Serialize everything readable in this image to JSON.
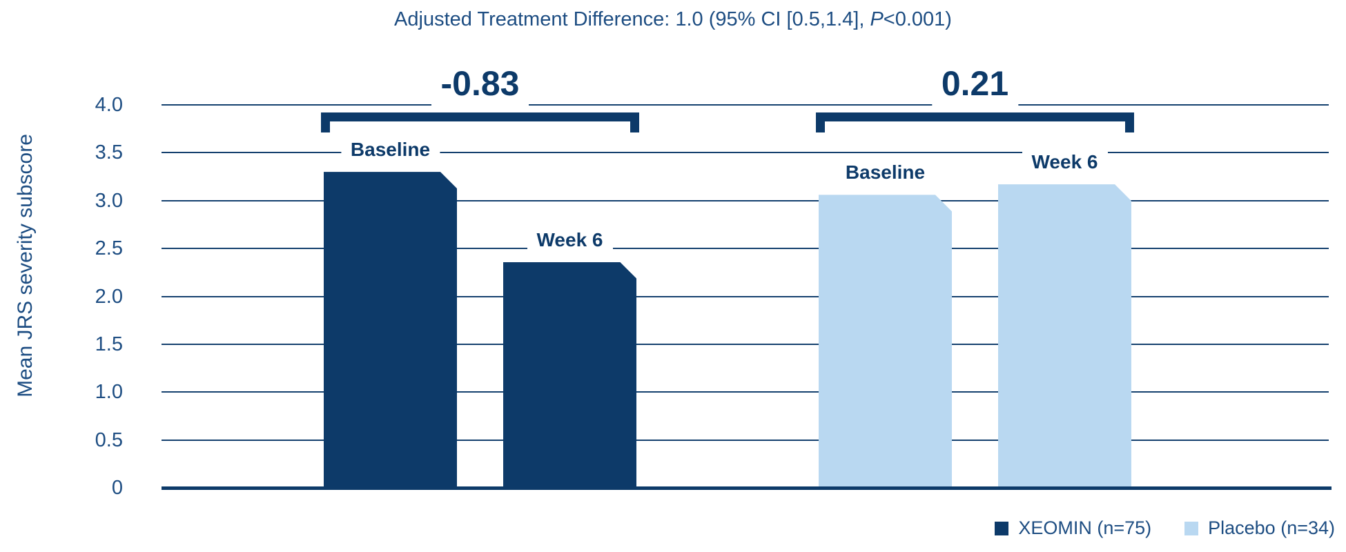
{
  "title": {
    "text_before_p": "Adjusted Treatment Difference: 1.0 (95% CI [0.5,1.4], ",
    "p_italic": "P",
    "text_after_p": "<0.001)"
  },
  "y_axis_title": "Mean JRS severity subscore",
  "chart_data": {
    "type": "bar",
    "title": "Adjusted Treatment Difference: 1.0 (95% CI [0.5,1.4], P<0.001)",
    "ylabel": "Mean JRS severity subscore",
    "ylim": [
      0,
      4.0
    ],
    "ytick_step": 0.5,
    "yticks": [
      {
        "label": "4.0",
        "value": 4.0
      },
      {
        "label": "3.5",
        "value": 3.5
      },
      {
        "label": "3.0",
        "value": 3.0
      },
      {
        "label": "2.5",
        "value": 2.5
      },
      {
        "label": "2.0",
        "value": 2.0
      },
      {
        "label": "1.5",
        "value": 1.5
      },
      {
        "label": "1.0",
        "value": 1.0
      },
      {
        "label": "0.5",
        "value": 0.5
      },
      {
        "label": "0",
        "value": 0
      }
    ],
    "grid": true,
    "categories": [
      "Baseline",
      "Week 6"
    ],
    "series": [
      {
        "name": "XEOMIN (n=75)",
        "color": "#0d3a69",
        "values": [
          3.3,
          2.36
        ],
        "bracket_label": "-0.83"
      },
      {
        "name": "Placebo (n=34)",
        "color": "#b9d8f1",
        "values": [
          3.06,
          3.17
        ],
        "bracket_label": "0.21"
      }
    ],
    "legend_position": "bottom-right"
  },
  "legend": {
    "items": [
      {
        "label": "XEOMIN (n=75)",
        "color": "#0d3a69"
      },
      {
        "label": "Placebo (n=34)",
        "color": "#b9d8f1"
      }
    ]
  },
  "colors": {
    "bar_dark": "#0d3a69",
    "bar_light": "#b9d8f1",
    "gridline": "#14406e",
    "text": "#1d4d82",
    "background": "#ffffff"
  }
}
